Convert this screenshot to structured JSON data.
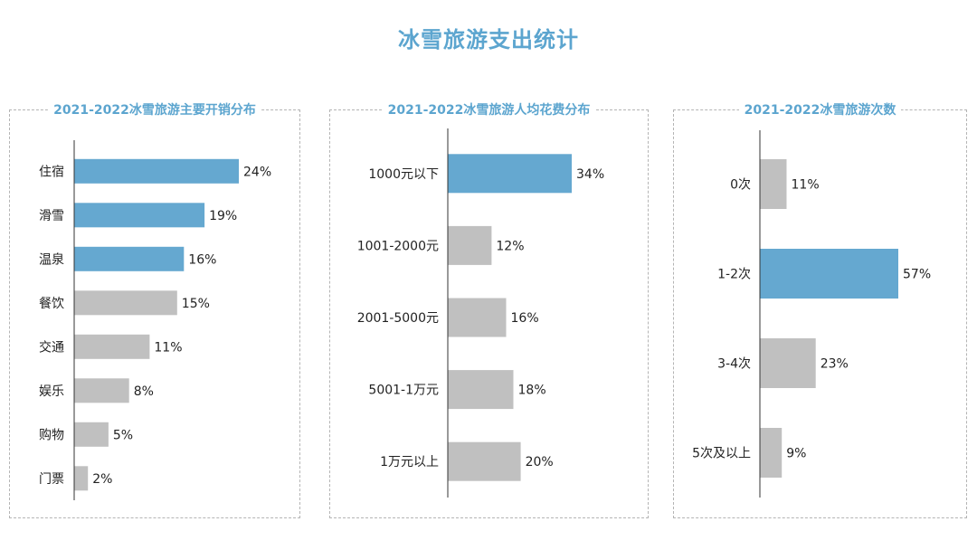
{
  "page": {
    "title": "冰雪旅游支出统计"
  },
  "colors": {
    "highlight": "#65a8d0",
    "normal": "#c0c0c0",
    "title": "#5ca5cf",
    "axis": "#333333"
  },
  "chart_data": [
    {
      "type": "bar",
      "orientation": "horizontal",
      "title": "2021-2022冰雪旅游主要开销分布",
      "categories": [
        "住宿",
        "滑雪",
        "温泉",
        "餐饮",
        "交通",
        "娱乐",
        "购物",
        "门票"
      ],
      "values": [
        24,
        19,
        16,
        15,
        11,
        8,
        5,
        2
      ],
      "value_labels": [
        "24%",
        "19%",
        "16%",
        "15%",
        "11%",
        "8%",
        "5%",
        "2%"
      ],
      "highlighted": [
        true,
        true,
        true,
        false,
        false,
        false,
        false,
        false
      ],
      "unit": "%",
      "xlim": [
        0,
        24
      ]
    },
    {
      "type": "bar",
      "orientation": "horizontal",
      "title": "2021-2022冰雪旅游人均花费分布",
      "categories": [
        "1000元以下",
        "1001-2000元",
        "2001-5000元",
        "5001-1万元",
        "1万元以上"
      ],
      "values": [
        34,
        12,
        16,
        18,
        20
      ],
      "value_labels": [
        "34%",
        "12%",
        "16%",
        "18%",
        "20%"
      ],
      "highlighted": [
        true,
        false,
        false,
        false,
        false
      ],
      "unit": "%",
      "xlim": [
        0,
        34
      ]
    },
    {
      "type": "bar",
      "orientation": "horizontal",
      "title": "2021-2022冰雪旅游次数",
      "categories": [
        "0次",
        "1-2次",
        "3-4次",
        "5次及以上"
      ],
      "values": [
        11,
        57,
        23,
        9
      ],
      "value_labels": [
        "11%",
        "57%",
        "23%",
        "9%"
      ],
      "highlighted": [
        false,
        true,
        false,
        false
      ],
      "unit": "%",
      "xlim": [
        0,
        57
      ]
    }
  ]
}
